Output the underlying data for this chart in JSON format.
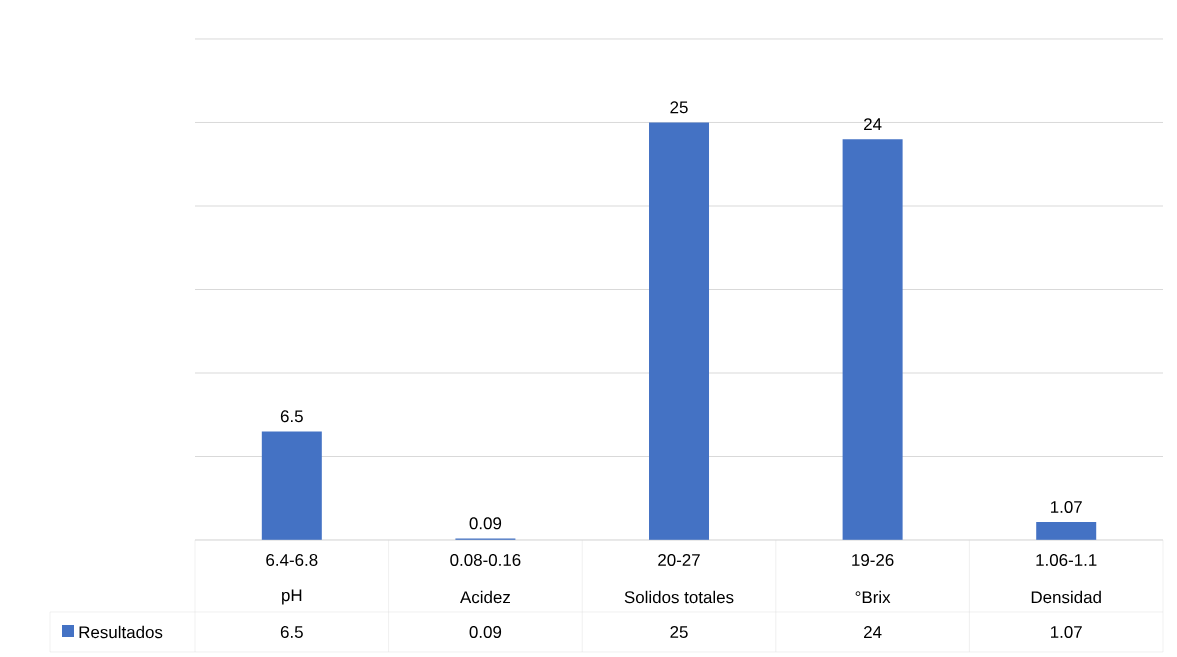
{
  "chart_data": {
    "type": "bar",
    "categories": [
      "pH",
      "Acidez",
      "Solidos totales",
      "°Brix",
      "Densidad"
    ],
    "series": [
      {
        "name": "Resultados",
        "color": "#4472c4",
        "values": [
          6.5,
          0.09,
          25,
          24,
          1.07
        ],
        "value_labels": [
          "6.5",
          "0.09",
          "25",
          "24",
          "1.07"
        ]
      }
    ],
    "annotations": [
      "6.4-6.8",
      "0.08-0.16",
      "20-27",
      "19-26",
      "1.06-1.1"
    ],
    "ylim": [
      0,
      30
    ],
    "yticks": [
      {
        "value": 0,
        "label": null
      },
      {
        "value": 5,
        "label": null
      },
      {
        "value": 10,
        "label": null
      },
      {
        "value": 15,
        "label": null
      },
      {
        "value": 20,
        "label": null
      },
      {
        "value": 25,
        "label": null
      },
      {
        "value": 30,
        "label": null
      }
    ],
    "grid": "y",
    "data_labels": true,
    "legend": "bottom"
  }
}
